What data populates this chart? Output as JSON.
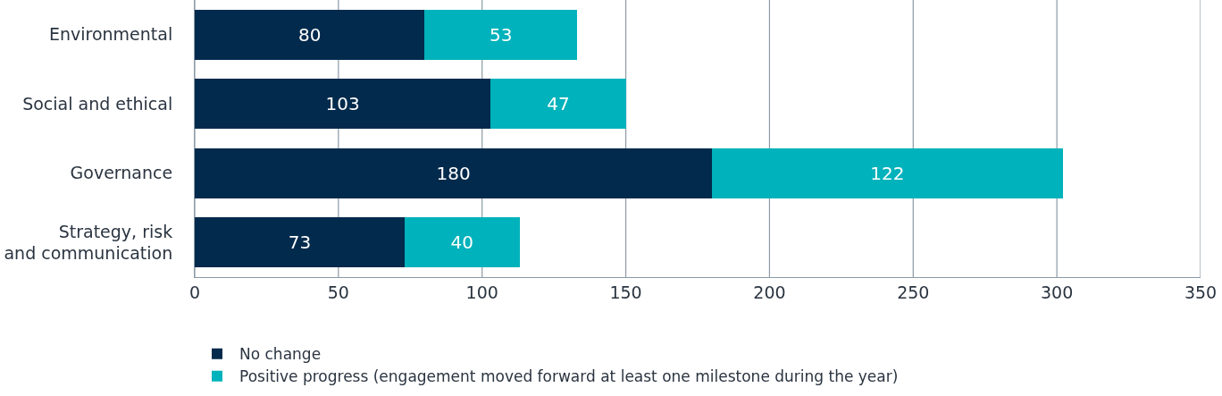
{
  "chart_data": {
    "type": "bar",
    "orientation": "horizontal",
    "stacked": true,
    "categories": [
      "Environmental",
      "Social and ethical",
      "Governance",
      "Strategy, risk and communication"
    ],
    "series": [
      {
        "name": "No change",
        "color": "#012a4c",
        "values": [
          80,
          103,
          180,
          73
        ]
      },
      {
        "name": "Positive progress (engagement moved forward at least one milestone during the year)",
        "color": "#00b2bb",
        "values": [
          53,
          47,
          122,
          40
        ]
      }
    ],
    "xlim": [
      0,
      350
    ],
    "xticks": [
      0,
      50,
      100,
      150,
      200,
      250,
      300,
      350
    ],
    "grid": "x",
    "data_labels": true,
    "legend": "bottom left"
  }
}
